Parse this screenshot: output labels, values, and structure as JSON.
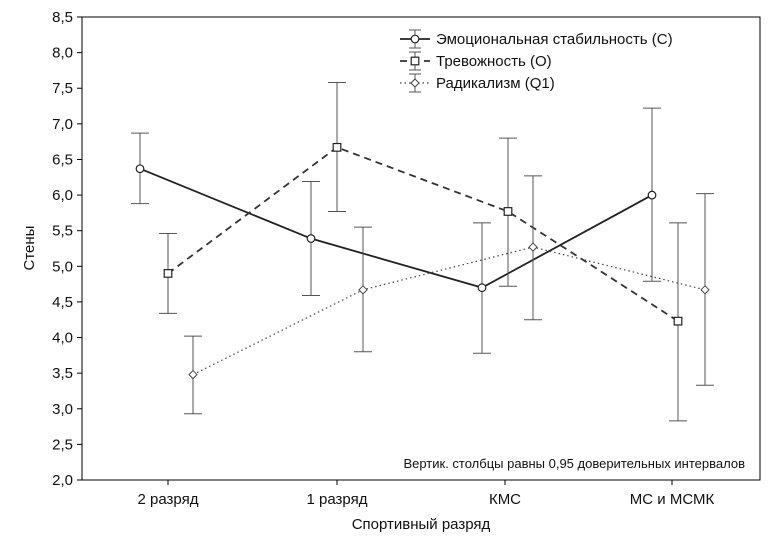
{
  "chart_data": {
    "type": "line",
    "title": "",
    "xlabel": "Спортивный разряд",
    "ylabel": "Стены",
    "ylim": [
      2.0,
      8.5
    ],
    "yticks": [
      "2,0",
      "2,5",
      "3,0",
      "3,5",
      "4,0",
      "4,5",
      "5,0",
      "5,5",
      "6,0",
      "6,5",
      "7,0",
      "7,5",
      "8,0",
      "8,5"
    ],
    "categories": [
      "2 разряд",
      "1 разряд",
      "КМС",
      "МС и МСМК"
    ],
    "grid": false,
    "legend_position": "top-right",
    "note": "Вертик. столбцы равны 0,95 доверительных интервалов",
    "series": [
      {
        "name": "Эмоциональная стабильность (С)",
        "marker": "circle",
        "line": "solid",
        "values": [
          6.37,
          5.39,
          4.7,
          6.0
        ],
        "lower": [
          5.88,
          4.59,
          3.78,
          4.79
        ],
        "upper": [
          6.87,
          6.19,
          5.61,
          7.22
        ]
      },
      {
        "name": "Тревожность (О)",
        "marker": "square",
        "line": "dashed",
        "values": [
          4.9,
          6.67,
          5.77,
          4.23
        ],
        "lower": [
          4.34,
          5.77,
          4.72,
          2.83
        ],
        "upper": [
          5.46,
          7.58,
          6.8,
          5.61
        ]
      },
      {
        "name": "Радикализм (Q1)",
        "marker": "diamond",
        "line": "dotted",
        "values": [
          3.48,
          4.67,
          5.27,
          4.67
        ],
        "lower": [
          2.93,
          3.8,
          4.25,
          3.33
        ],
        "upper": [
          4.02,
          5.55,
          6.27,
          6.02
        ]
      }
    ]
  }
}
